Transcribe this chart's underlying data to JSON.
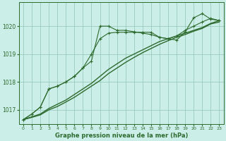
{
  "title": "Graphe pression niveau de la mer (hPa)",
  "bg_color": "#cceee8",
  "grid_color": "#99ccbb",
  "line_color": "#2d6a2d",
  "xlim": [
    -0.5,
    23.5
  ],
  "ylim": [
    1016.5,
    1020.85
  ],
  "yticks": [
    1017,
    1018,
    1019,
    1020
  ],
  "xticks": [
    0,
    1,
    2,
    3,
    4,
    5,
    6,
    7,
    8,
    9,
    10,
    11,
    12,
    13,
    14,
    15,
    16,
    17,
    18,
    19,
    20,
    21,
    22,
    23
  ],
  "series": [
    {
      "x": [
        0,
        1,
        2,
        3,
        4,
        5,
        6,
        7,
        8,
        9,
        10,
        11,
        12,
        13,
        14,
        15,
        16,
        17,
        18,
        19,
        20,
        21,
        22,
        23
      ],
      "y": [
        1016.65,
        1016.85,
        1017.1,
        1017.75,
        1017.85,
        1018.0,
        1018.2,
        1018.5,
        1018.75,
        1020.0,
        1020.0,
        1019.85,
        1019.85,
        1019.8,
        1019.75,
        1019.7,
        1019.6,
        1019.55,
        1019.5,
        1019.8,
        1020.3,
        1020.45,
        1020.25,
        1020.2
      ],
      "marker": true
    },
    {
      "x": [
        0,
        1,
        2,
        3,
        4,
        5,
        6,
        7,
        8,
        9,
        10,
        11,
        12,
        13,
        14,
        15,
        16,
        17,
        18,
        19,
        20,
        21,
        22,
        23
      ],
      "y": [
        1016.65,
        1016.85,
        1017.1,
        1017.75,
        1017.85,
        1018.0,
        1018.2,
        1018.5,
        1019.0,
        1019.55,
        1019.75,
        1019.78,
        1019.78,
        1019.78,
        1019.78,
        1019.78,
        1019.6,
        1019.55,
        1019.65,
        1019.85,
        1020.0,
        1020.15,
        1020.28,
        1020.2
      ],
      "marker": true
    },
    {
      "x": [
        0,
        1,
        2,
        3,
        4,
        5,
        6,
        7,
        8,
        9,
        10,
        11,
        12,
        13,
        14,
        15,
        16,
        17,
        18,
        19,
        20,
        21,
        22,
        23
      ],
      "y": [
        1016.65,
        1016.75,
        1016.85,
        1017.05,
        1017.2,
        1017.35,
        1017.55,
        1017.75,
        1017.95,
        1018.2,
        1018.45,
        1018.65,
        1018.85,
        1019.0,
        1019.15,
        1019.3,
        1019.45,
        1019.55,
        1019.65,
        1019.75,
        1019.85,
        1019.95,
        1020.1,
        1020.2
      ],
      "marker": false
    },
    {
      "x": [
        0,
        1,
        2,
        3,
        4,
        5,
        6,
        7,
        8,
        9,
        10,
        11,
        12,
        13,
        14,
        15,
        16,
        17,
        18,
        19,
        20,
        21,
        22,
        23
      ],
      "y": [
        1016.65,
        1016.73,
        1016.82,
        1017.0,
        1017.12,
        1017.28,
        1017.45,
        1017.65,
        1017.85,
        1018.05,
        1018.3,
        1018.5,
        1018.7,
        1018.88,
        1019.05,
        1019.2,
        1019.35,
        1019.48,
        1019.6,
        1019.7,
        1019.82,
        1019.92,
        1020.08,
        1020.15
      ],
      "marker": false
    }
  ],
  "figsize": [
    3.2,
    2.0
  ],
  "dpi": 100
}
